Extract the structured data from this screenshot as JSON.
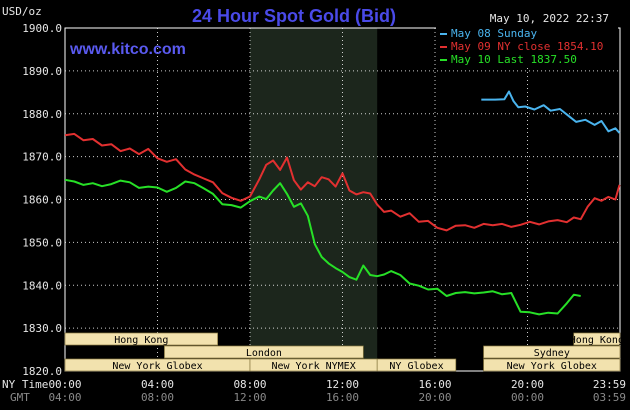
{
  "header": {
    "title": "24 Hour Spot Gold (Bid)",
    "y_unit": "USD/oz",
    "timestamp": "May 10, 2022 22:37",
    "website": "www.kitco.com"
  },
  "colors": {
    "background": "#000000",
    "plot_border": "#ffffff",
    "grid": "#ffffff",
    "nymex_shade": "#1c261c",
    "title": "#4a4ae8",
    "market_box": "#f2e2ae"
  },
  "chart_data": {
    "type": "line",
    "ylabel": "USD/oz",
    "ylim": [
      1820,
      1900
    ],
    "yticks": [
      {
        "label": "1900.0",
        "value": 1900
      },
      {
        "label": "1890.0",
        "value": 1890
      },
      {
        "label": "1880.0",
        "value": 1880
      },
      {
        "label": "1870.0",
        "value": 1870
      },
      {
        "label": "1860.0",
        "value": 1860
      },
      {
        "label": "1850.0",
        "value": 1850
      },
      {
        "label": "1840.0",
        "value": 1840
      },
      {
        "label": "1830.0",
        "value": 1830
      },
      {
        "label": "1820.0",
        "value": 1820
      }
    ],
    "xlim": [
      0,
      24
    ],
    "x_axis_title_1": "NY Time",
    "x_axis_title_2": "GMT",
    "xticks_ny": [
      {
        "label": "00:00",
        "hour": 0
      },
      {
        "label": "04:00",
        "hour": 4
      },
      {
        "label": "08:00",
        "hour": 8
      },
      {
        "label": "12:00",
        "hour": 12
      },
      {
        "label": "16:00",
        "hour": 16
      },
      {
        "label": "20:00",
        "hour": 20
      },
      {
        "label": "23:59",
        "hour": 24
      }
    ],
    "xticks_gmt": [
      {
        "label": "04:00",
        "hour": 0
      },
      {
        "label": "08:00",
        "hour": 4
      },
      {
        "label": "12:00",
        "hour": 8
      },
      {
        "label": "16:00",
        "hour": 12
      },
      {
        "label": "20:00",
        "hour": 16
      },
      {
        "label": "00:00",
        "hour": 20
      },
      {
        "label": "03:59",
        "hour": 24
      }
    ],
    "nymex_session": [
      8.0,
      13.5
    ],
    "legend_position": "top-right",
    "series": [
      {
        "name": "May 08 Sunday",
        "color": "#4ab4ee",
        "x": [
          18.0,
          18.6,
          19.0,
          19.2,
          19.4,
          19.6,
          19.9,
          20.3,
          20.7,
          21.0,
          21.4,
          21.8,
          22.1,
          22.5,
          22.9,
          23.2,
          23.5,
          23.8,
          23.98
        ],
        "y": [
          1883.3,
          1883.3,
          1883.4,
          1885.2,
          1882.9,
          1881.5,
          1881.7,
          1881.0,
          1882.0,
          1880.7,
          1881.1,
          1879.4,
          1878.1,
          1878.6,
          1877.4,
          1878.3,
          1875.9,
          1876.6,
          1875.5
        ]
      },
      {
        "name": "May 09 NY close 1854.10",
        "color": "#e23030",
        "x": [
          0.0,
          0.4,
          0.8,
          1.2,
          1.6,
          2.0,
          2.4,
          2.8,
          3.2,
          3.6,
          4.0,
          4.4,
          4.8,
          5.2,
          5.6,
          6.0,
          6.4,
          6.8,
          7.2,
          7.6,
          8.0,
          8.4,
          8.7,
          9.0,
          9.3,
          9.6,
          9.9,
          10.2,
          10.5,
          10.8,
          11.1,
          11.4,
          11.7,
          12.0,
          12.3,
          12.6,
          12.9,
          13.2,
          13.5,
          13.8,
          14.1,
          14.5,
          14.9,
          15.3,
          15.7,
          16.1,
          16.5,
          16.9,
          17.3,
          17.7,
          18.1,
          18.5,
          18.9,
          19.3,
          19.7,
          20.1,
          20.5,
          20.9,
          21.3,
          21.7,
          22.0,
          22.3,
          22.6,
          22.9,
          23.2,
          23.5,
          23.8,
          23.98
        ],
        "y": [
          1875.0,
          1875.3,
          1873.8,
          1874.1,
          1872.6,
          1872.9,
          1871.3,
          1871.9,
          1870.6,
          1871.8,
          1869.6,
          1868.8,
          1869.4,
          1867.0,
          1865.8,
          1864.9,
          1864.0,
          1861.5,
          1860.4,
          1859.7,
          1860.7,
          1864.7,
          1868.1,
          1869.1,
          1866.9,
          1869.8,
          1864.5,
          1862.3,
          1864.0,
          1863.1,
          1865.2,
          1864.7,
          1863.0,
          1866.1,
          1862.1,
          1861.2,
          1861.7,
          1861.4,
          1858.8,
          1857.1,
          1857.4,
          1856.0,
          1856.8,
          1854.8,
          1855.0,
          1853.4,
          1852.8,
          1853.9,
          1854.0,
          1853.4,
          1854.3,
          1854.0,
          1854.3,
          1853.6,
          1854.1,
          1854.8,
          1854.2,
          1854.9,
          1855.2,
          1854.7,
          1855.8,
          1855.4,
          1858.3,
          1860.3,
          1859.7,
          1860.6,
          1860.0,
          1863.4
        ]
      },
      {
        "name": "May 10 Last 1837.50",
        "color": "#27e027",
        "x": [
          0.0,
          0.4,
          0.8,
          1.2,
          1.6,
          2.0,
          2.4,
          2.8,
          3.2,
          3.6,
          4.0,
          4.4,
          4.8,
          5.2,
          5.6,
          6.0,
          6.4,
          6.8,
          7.2,
          7.6,
          8.0,
          8.4,
          8.7,
          9.0,
          9.3,
          9.6,
          9.9,
          10.2,
          10.5,
          10.8,
          11.1,
          11.4,
          11.7,
          12.0,
          12.3,
          12.6,
          12.9,
          13.2,
          13.5,
          13.8,
          14.1,
          14.5,
          14.9,
          15.3,
          15.7,
          16.1,
          16.5,
          16.9,
          17.3,
          17.7,
          18.1,
          18.5,
          18.9,
          19.3,
          19.7,
          20.1,
          20.5,
          20.9,
          21.3,
          21.7,
          22.0,
          22.3
        ],
        "y": [
          1864.6,
          1864.2,
          1863.4,
          1863.8,
          1863.1,
          1863.6,
          1864.4,
          1864.0,
          1862.7,
          1863.0,
          1862.8,
          1861.8,
          1862.7,
          1864.2,
          1863.8,
          1862.6,
          1861.3,
          1858.9,
          1858.7,
          1858.1,
          1859.6,
          1860.7,
          1860.1,
          1862.1,
          1863.8,
          1861.3,
          1858.3,
          1859.1,
          1856.2,
          1849.6,
          1846.6,
          1845.1,
          1844.0,
          1843.1,
          1841.9,
          1841.3,
          1844.6,
          1842.4,
          1842.1,
          1842.5,
          1843.3,
          1842.4,
          1840.4,
          1839.9,
          1839.0,
          1839.2,
          1837.5,
          1838.2,
          1838.4,
          1838.1,
          1838.3,
          1838.6,
          1837.9,
          1838.2,
          1833.8,
          1833.7,
          1833.2,
          1833.6,
          1833.4,
          1835.8,
          1837.8,
          1837.5
        ]
      }
    ]
  },
  "markets": [
    {
      "label": "Hong Kong",
      "start": 0.0,
      "end": 6.6,
      "row": 0
    },
    {
      "label": "London",
      "start": 4.3,
      "end": 12.9,
      "row": 1
    },
    {
      "label": "New York Globex",
      "start": 0.0,
      "end": 8.0,
      "row": 2
    },
    {
      "label": "New York NYMEX",
      "start": 8.0,
      "end": 13.5,
      "row": 2
    },
    {
      "label": "NY Globex",
      "start": 13.5,
      "end": 16.9,
      "row": 2
    },
    {
      "label": "Sydney",
      "start": 18.1,
      "end": 24.0,
      "row": 1
    },
    {
      "label": "Hong Kong",
      "start": 22.0,
      "end": 24.0,
      "row": 0
    },
    {
      "label": "New York Globex",
      "start": 18.1,
      "end": 24.0,
      "row": 2
    }
  ]
}
